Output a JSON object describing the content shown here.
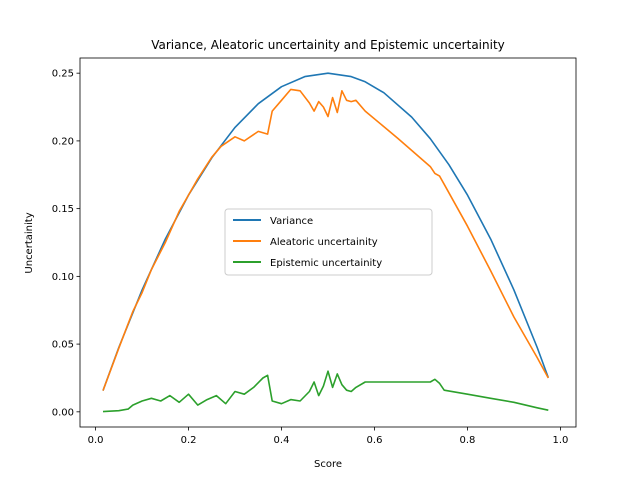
{
  "chart_data": {
    "type": "line",
    "title": "Variance, Aleatoric uncertainity and Epistemic uncertainity",
    "xlabel": "Score",
    "ylabel": "Uncertainity",
    "xlim": [
      -0.0335,
      1.0335
    ],
    "ylim": [
      -0.0112,
      0.2612
    ],
    "xticks": [
      0.0,
      0.2,
      0.4,
      0.6,
      0.8,
      1.0
    ],
    "xtick_labels": [
      "0.0",
      "0.2",
      "0.4",
      "0.6",
      "0.8",
      "1.0"
    ],
    "yticks": [
      0.0,
      0.05,
      0.1,
      0.15,
      0.2,
      0.25
    ],
    "ytick_labels": [
      "0.00",
      "0.05",
      "0.10",
      "0.15",
      "0.20",
      "0.25"
    ],
    "grid": false,
    "legend_position": "center",
    "series": [
      {
        "name": "Variance",
        "color": "#1f77b4",
        "x": [
          0.016,
          0.05,
          0.1,
          0.15,
          0.2,
          0.25,
          0.3,
          0.35,
          0.4,
          0.45,
          0.5,
          0.55,
          0.58,
          0.62,
          0.68,
          0.72,
          0.76,
          0.8,
          0.85,
          0.9,
          0.95,
          0.974
        ],
        "y": [
          0.0157,
          0.0475,
          0.09,
          0.1275,
          0.16,
          0.1875,
          0.21,
          0.2275,
          0.24,
          0.2475,
          0.25,
          0.2475,
          0.2436,
          0.2356,
          0.2176,
          0.2016,
          0.1824,
          0.16,
          0.1275,
          0.09,
          0.0475,
          0.0253
        ]
      },
      {
        "name": "Aleatoric uncertainity",
        "color": "#ff7f0e",
        "x": [
          0.016,
          0.05,
          0.08,
          0.1,
          0.12,
          0.15,
          0.18,
          0.2,
          0.22,
          0.25,
          0.27,
          0.3,
          0.32,
          0.35,
          0.37,
          0.38,
          0.4,
          0.42,
          0.44,
          0.46,
          0.47,
          0.48,
          0.49,
          0.5,
          0.51,
          0.52,
          0.53,
          0.54,
          0.55,
          0.56,
          0.58,
          0.65,
          0.72,
          0.73,
          0.74,
          0.75,
          0.8,
          0.85,
          0.9,
          0.95,
          0.974
        ],
        "y": [
          0.0157,
          0.047,
          0.074,
          0.088,
          0.105,
          0.125,
          0.148,
          0.16,
          0.172,
          0.188,
          0.196,
          0.203,
          0.2,
          0.207,
          0.205,
          0.222,
          0.23,
          0.238,
          0.237,
          0.228,
          0.222,
          0.229,
          0.225,
          0.218,
          0.232,
          0.221,
          0.237,
          0.23,
          0.229,
          0.23,
          0.222,
          0.202,
          0.181,
          0.176,
          0.174,
          0.168,
          0.137,
          0.104,
          0.07,
          0.04,
          0.025
        ]
      },
      {
        "name": "Epistemic uncertainity",
        "color": "#2ca02c",
        "x": [
          0.016,
          0.03,
          0.05,
          0.07,
          0.08,
          0.1,
          0.12,
          0.14,
          0.16,
          0.18,
          0.2,
          0.22,
          0.24,
          0.26,
          0.28,
          0.3,
          0.32,
          0.34,
          0.36,
          0.37,
          0.38,
          0.4,
          0.42,
          0.44,
          0.46,
          0.47,
          0.48,
          0.49,
          0.5,
          0.51,
          0.52,
          0.53,
          0.54,
          0.55,
          0.56,
          0.58,
          0.65,
          0.72,
          0.73,
          0.74,
          0.75,
          0.8,
          0.85,
          0.9,
          0.95,
          0.974
        ],
        "y": [
          0.0002,
          0.0005,
          0.0008,
          0.002,
          0.005,
          0.008,
          0.01,
          0.008,
          0.012,
          0.007,
          0.013,
          0.005,
          0.009,
          0.012,
          0.006,
          0.015,
          0.013,
          0.018,
          0.025,
          0.027,
          0.008,
          0.006,
          0.009,
          0.008,
          0.015,
          0.022,
          0.012,
          0.019,
          0.03,
          0.018,
          0.028,
          0.02,
          0.016,
          0.015,
          0.018,
          0.022,
          0.022,
          0.022,
          0.024,
          0.021,
          0.016,
          0.013,
          0.01,
          0.007,
          0.003,
          0.0012
        ]
      }
    ]
  }
}
